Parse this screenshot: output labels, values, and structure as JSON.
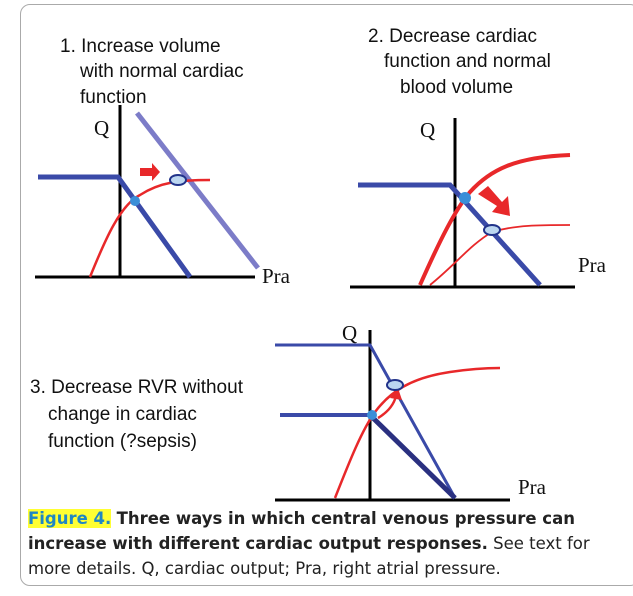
{
  "figure": {
    "panels": [
      {
        "lines": [
          "1. Increase  volume",
          "with normal cardiac",
          "function"
        ],
        "y_label": "Q",
        "x_label": "Pra"
      },
      {
        "lines": [
          "2. Decrease cardiac",
          "function and normal",
          "blood volume"
        ],
        "y_label": "Q",
        "x_label": "Pra"
      },
      {
        "lines": [
          "3. Decrease RVR without",
          "change in cardiac",
          "function (?sepsis)"
        ],
        "y_label": "Q",
        "x_label": "Pra"
      }
    ],
    "caption": {
      "label": "Figure 4.",
      "title": "Three ways in which central venous pressure can increase with different cardiac output responses.",
      "text": "See text for more details. Q, cardiac output; Pra, right atrial pressure."
    }
  }
}
